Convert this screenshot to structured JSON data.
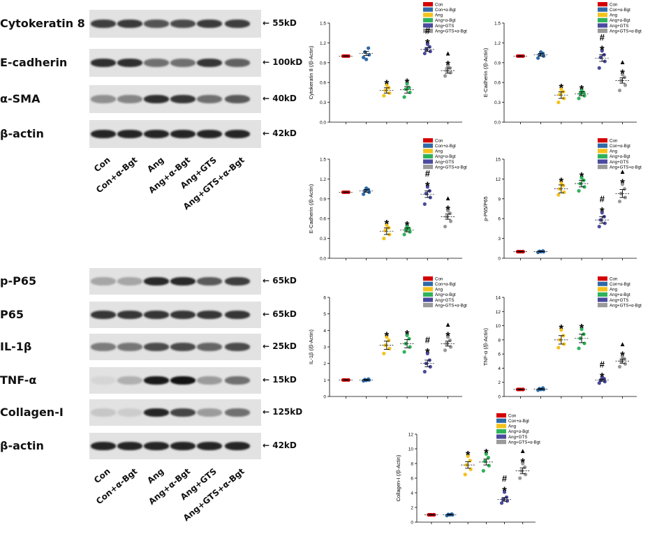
{
  "colors": {
    "groups": [
      "#d40000",
      "#2f6aa6",
      "#f5c21b",
      "#2fb35a",
      "#4a4a9e",
      "#9a9a9a"
    ]
  },
  "blot_top": {
    "rows": [
      {
        "label": "Cytokeratin 8",
        "kd": "55kD",
        "intensity": [
          0.78,
          0.8,
          0.68,
          0.72,
          0.8,
          0.78
        ]
      },
      {
        "label": "E-cadherin",
        "kd": "100kD",
        "intensity": [
          0.85,
          0.85,
          0.55,
          0.55,
          0.82,
          0.62
        ]
      },
      {
        "label": "α-SMA",
        "kd": "40kD",
        "intensity": [
          0.4,
          0.45,
          0.85,
          0.82,
          0.55,
          0.65
        ]
      },
      {
        "label": "β-actin",
        "kd": "42kD",
        "intensity": [
          0.9,
          0.9,
          0.9,
          0.9,
          0.9,
          0.9
        ]
      }
    ],
    "lanes": [
      "Con",
      "Con+α-Bgt",
      "Ang",
      "Ang+α-Bgt",
      "Ang+GTS",
      "Ang+GTS+α-Bgt"
    ]
  },
  "blot_bottom": {
    "rows": [
      {
        "label": "p-P65",
        "kd": "65kD",
        "intensity": [
          0.3,
          0.3,
          0.88,
          0.88,
          0.65,
          0.78
        ]
      },
      {
        "label": "P65",
        "kd": "65kD",
        "intensity": [
          0.82,
          0.82,
          0.82,
          0.82,
          0.82,
          0.82
        ]
      },
      {
        "label": "IL-1β",
        "kd": "25kD",
        "intensity": [
          0.5,
          0.52,
          0.72,
          0.72,
          0.6,
          0.72
        ]
      },
      {
        "label": "TNF-α",
        "kd": "15kD",
        "intensity": [
          0.08,
          0.25,
          0.95,
          0.98,
          0.35,
          0.55
        ]
      },
      {
        "label": "Collagen-I",
        "kd": "125kD",
        "intensity": [
          0.15,
          0.12,
          0.9,
          0.75,
          0.35,
          0.55
        ]
      },
      {
        "label": "β-actin",
        "kd": "42kD",
        "intensity": [
          0.9,
          0.9,
          0.9,
          0.9,
          0.9,
          0.9
        ]
      }
    ],
    "lanes": [
      "Con",
      "Con+α-Bgt",
      "Ang",
      "Ang+α-Bgt",
      "Ang+GTS",
      "Ang+GTS+α-Bgt"
    ]
  },
  "chart_data": [
    {
      "type": "scatter",
      "ylabel": "Cytokeratin 8 (/β-Actin)",
      "ylim": [
        0,
        1.5
      ],
      "yticks": [
        "0.0",
        "0.3",
        "0.6",
        "0.9",
        "1.2",
        "1.5"
      ],
      "legend": [
        "Con",
        "Con+α-Bgt",
        "Ang",
        "Ang+α-Bgt",
        "Ang+GTS",
        "Ang+GTS+α-Bgt"
      ],
      "legend_placement": "top-right",
      "groups": [
        {
          "points": [
            1.0,
            1.0,
            1.0,
            1.0,
            1.0
          ],
          "mean": 1.0,
          "sem": 0.005,
          "marks": ""
        },
        {
          "points": [
            0.98,
            1.02,
            1.06,
            1.12,
            0.95
          ],
          "mean": 1.04,
          "sem": 0.03,
          "marks": ""
        },
        {
          "points": [
            0.4,
            0.44,
            0.48,
            0.52,
            0.56
          ],
          "mean": 0.48,
          "sem": 0.04,
          "marks": "*"
        },
        {
          "points": [
            0.38,
            0.45,
            0.5,
            0.52,
            0.58
          ],
          "mean": 0.49,
          "sem": 0.05,
          "marks": "*"
        },
        {
          "points": [
            1.04,
            1.07,
            1.1,
            1.14,
            1.18
          ],
          "mean": 1.1,
          "sem": 0.03,
          "marks": "#*"
        },
        {
          "points": [
            0.7,
            0.75,
            0.78,
            0.82,
            0.85
          ],
          "mean": 0.78,
          "sem": 0.04,
          "marks": "▲*"
        }
      ]
    },
    {
      "type": "scatter",
      "ylabel": "E-Cadherin (/β-Actin)",
      "ylim": [
        0,
        1.5
      ],
      "yticks": [
        "0.0",
        "0.3",
        "0.6",
        "0.9",
        "1.2",
        "1.5"
      ],
      "legend": [
        "Con",
        "Con+α-Bgt",
        "Ang",
        "Ang+α-Bgt",
        "Ang+GTS",
        "Ang+GTS+α-Bgt"
      ],
      "legend_placement": "top-right",
      "groups": [
        {
          "points": [
            1.0,
            1.0,
            1.0,
            1.0,
            1.0
          ],
          "mean": 1.0,
          "sem": 0.005,
          "marks": ""
        },
        {
          "points": [
            0.97,
            1.0,
            1.02,
            1.04,
            1.06
          ],
          "mean": 1.02,
          "sem": 0.02,
          "marks": ""
        },
        {
          "points": [
            0.3,
            0.36,
            0.42,
            0.46,
            0.5
          ],
          "mean": 0.41,
          "sem": 0.05,
          "marks": "*"
        },
        {
          "points": [
            0.36,
            0.4,
            0.43,
            0.45,
            0.48
          ],
          "mean": 0.43,
          "sem": 0.03,
          "marks": "*"
        },
        {
          "points": [
            0.82,
            0.92,
            0.98,
            1.02,
            1.08
          ],
          "mean": 0.97,
          "sem": 0.05,
          "marks": "#*"
        },
        {
          "points": [
            0.48,
            0.56,
            0.63,
            0.68,
            0.72
          ],
          "mean": 0.63,
          "sem": 0.04,
          "marks": "▲*"
        }
      ]
    },
    {
      "type": "scatter",
      "ylabel": "E-Cadherin (/β-Actin)",
      "ylim": [
        0,
        1.5
      ],
      "yticks": [
        "0.0",
        "0.3",
        "0.6",
        "0.9",
        "1.2",
        "1.5"
      ],
      "legend": [
        "Con",
        "Con+α-Bgt",
        "Ang",
        "Ang+α-Bgt",
        "Ang+GTS",
        "Ang+GTS+α-Bgt"
      ],
      "legend_placement": "top-right",
      "groups": [
        {
          "points": [
            1.0,
            1.0,
            1.0,
            1.0,
            1.0
          ],
          "mean": 1.0,
          "sem": 0.005,
          "marks": ""
        },
        {
          "points": [
            0.97,
            1.0,
            1.02,
            1.04,
            1.06
          ],
          "mean": 1.02,
          "sem": 0.02,
          "marks": ""
        },
        {
          "points": [
            0.3,
            0.36,
            0.42,
            0.46,
            0.5
          ],
          "mean": 0.41,
          "sem": 0.05,
          "marks": "*"
        },
        {
          "points": [
            0.36,
            0.4,
            0.43,
            0.45,
            0.48
          ],
          "mean": 0.43,
          "sem": 0.03,
          "marks": "*"
        },
        {
          "points": [
            0.82,
            0.92,
            0.98,
            1.02,
            1.08
          ],
          "mean": 0.97,
          "sem": 0.05,
          "marks": "#*"
        },
        {
          "points": [
            0.48,
            0.56,
            0.63,
            0.68,
            0.72
          ],
          "mean": 0.63,
          "sem": 0.04,
          "marks": "▲*"
        }
      ]
    },
    {
      "type": "scatter",
      "ylabel": "p-P65/P65",
      "ylim": [
        0,
        15
      ],
      "yticks": [
        "0",
        "3",
        "6",
        "9",
        "12",
        "15"
      ],
      "legend": [
        "Con",
        "Con+α-Bgt",
        "Ang",
        "Ang+α-Bgt",
        "Ang+GTS",
        "Ang+GTS+α-Bgt"
      ],
      "legend_placement": "top-right",
      "groups": [
        {
          "points": [
            1.0,
            1.0,
            1.0,
            1.0,
            1.0
          ],
          "mean": 1.0,
          "sem": 0.05,
          "marks": ""
        },
        {
          "points": [
            0.9,
            1.0,
            1.05,
            1.1,
            1.0
          ],
          "mean": 1.02,
          "sem": 0.05,
          "marks": ""
        },
        {
          "points": [
            9.6,
            10.0,
            10.5,
            11.0,
            11.4
          ],
          "mean": 10.5,
          "sem": 0.6,
          "marks": "*"
        },
        {
          "points": [
            10.2,
            10.8,
            11.3,
            11.8,
            12.2
          ],
          "mean": 11.3,
          "sem": 0.5,
          "marks": "*"
        },
        {
          "points": [
            4.8,
            5.3,
            5.8,
            6.3,
            6.9
          ],
          "mean": 5.8,
          "sem": 0.5,
          "marks": "#*"
        },
        {
          "points": [
            8.6,
            9.2,
            9.8,
            10.5,
            11.2
          ],
          "mean": 9.8,
          "sem": 0.6,
          "marks": "▲*"
        }
      ]
    },
    {
      "type": "scatter",
      "ylabel": "IL-1β (/β-Actin)",
      "ylim": [
        0,
        6
      ],
      "yticks": [
        "0",
        "1",
        "2",
        "3",
        "4",
        "5",
        "6"
      ],
      "legend": [
        "Con",
        "Con+α-Bgt",
        "Ang",
        "Ang+α-Bgt",
        "Ang+GTS",
        "Ang+GTS+α-Bgt"
      ],
      "legend_placement": "top-right",
      "groups": [
        {
          "points": [
            1.0,
            1.0,
            1.0,
            1.0,
            1.0
          ],
          "mean": 1.0,
          "sem": 0.02,
          "marks": ""
        },
        {
          "points": [
            0.95,
            1.0,
            1.02,
            1.05,
            0.98
          ],
          "mean": 1.0,
          "sem": 0.03,
          "marks": ""
        },
        {
          "points": [
            2.6,
            2.9,
            3.1,
            3.4,
            3.6
          ],
          "mean": 3.1,
          "sem": 0.25,
          "marks": "*"
        },
        {
          "points": [
            2.7,
            3.0,
            3.2,
            3.5,
            3.7
          ],
          "mean": 3.2,
          "sem": 0.25,
          "marks": "*"
        },
        {
          "points": [
            1.5,
            1.8,
            2.0,
            2.2,
            2.6
          ],
          "mean": 2.0,
          "sem": 0.2,
          "marks": "#*"
        },
        {
          "points": [
            2.8,
            3.0,
            3.2,
            3.4,
            3.6
          ],
          "mean": 3.2,
          "sem": 0.15,
          "marks": "▲*"
        }
      ]
    },
    {
      "type": "scatter",
      "ylabel": "TNF-α (/β-Actin)",
      "ylim": [
        0,
        14
      ],
      "yticks": [
        "0",
        "2",
        "4",
        "6",
        "8",
        "10",
        "12",
        "14"
      ],
      "legend": [
        "Con",
        "Con+α-Bgt",
        "Ang",
        "Ang+α-Bgt",
        "Ang+GTS",
        "Ang+GTS+α-Bgt"
      ],
      "legend_placement": "top-right",
      "groups": [
        {
          "points": [
            1.0,
            1.0,
            1.0,
            1.0,
            1.0
          ],
          "mean": 1.0,
          "sem": 0.05,
          "marks": ""
        },
        {
          "points": [
            0.9,
            1.0,
            1.1,
            1.2,
            1.0
          ],
          "mean": 1.05,
          "sem": 0.06,
          "marks": ""
        },
        {
          "points": [
            6.9,
            7.4,
            8.0,
            8.6,
            9.4
          ],
          "mean": 8.0,
          "sem": 0.6,
          "marks": "*"
        },
        {
          "points": [
            6.8,
            7.5,
            8.2,
            8.8,
            9.5
          ],
          "mean": 8.2,
          "sem": 0.6,
          "marks": "*"
        },
        {
          "points": [
            1.9,
            2.1,
            2.3,
            2.5,
            2.6
          ],
          "mean": 2.3,
          "sem": 0.15,
          "marks": "#*"
        },
        {
          "points": [
            4.2,
            4.6,
            5.0,
            5.3,
            5.6
          ],
          "mean": 5.0,
          "sem": 0.3,
          "marks": "▲*"
        }
      ]
    },
    {
      "type": "scatter",
      "ylabel": "Collagen-I (/β-Actin)",
      "ylim": [
        0,
        12
      ],
      "yticks": [
        "0",
        "2",
        "4",
        "6",
        "8",
        "10",
        "12"
      ],
      "legend": [
        "Con",
        "Con+α-Bgt",
        "Ang",
        "Ang+α-Bgt",
        "Ang+GTS",
        "Ang+GTS+α-Bgt"
      ],
      "legend_placement": "top-right",
      "groups": [
        {
          "points": [
            1.0,
            1.0,
            1.0,
            1.0,
            1.0
          ],
          "mean": 1.0,
          "sem": 0.05,
          "marks": ""
        },
        {
          "points": [
            0.9,
            1.0,
            1.05,
            1.1,
            1.0
          ],
          "mean": 1.02,
          "sem": 0.05,
          "marks": ""
        },
        {
          "points": [
            6.5,
            7.2,
            7.8,
            8.4,
            9.0
          ],
          "mean": 7.8,
          "sem": 0.45,
          "marks": "*"
        },
        {
          "points": [
            7.0,
            7.7,
            8.3,
            8.8,
            9.3
          ],
          "mean": 8.2,
          "sem": 0.4,
          "marks": "*"
        },
        {
          "points": [
            2.6,
            2.9,
            3.1,
            3.4,
            4.1
          ],
          "mean": 3.1,
          "sem": 0.25,
          "marks": "#*"
        },
        {
          "points": [
            6.0,
            6.5,
            7.0,
            7.5,
            8.0
          ],
          "mean": 7.0,
          "sem": 0.4,
          "marks": "▲*"
        }
      ]
    }
  ]
}
